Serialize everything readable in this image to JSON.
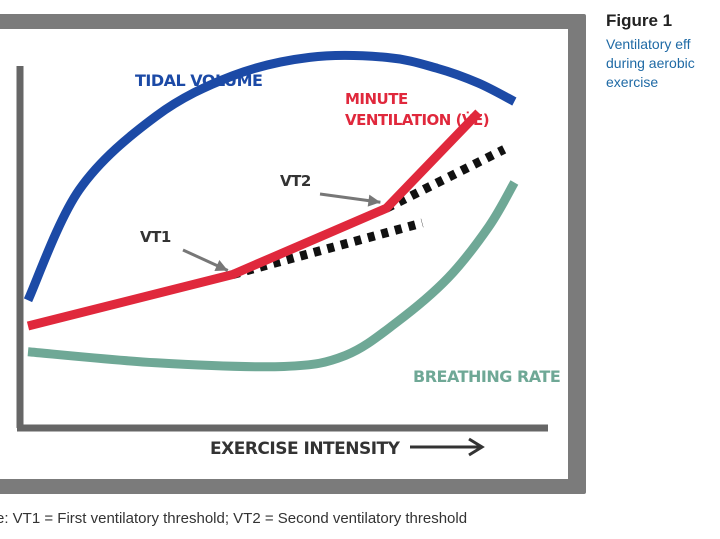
{
  "figure": {
    "title": "Figure 1",
    "subtitle_lines": [
      "Ventilatory eff",
      "during aerobic",
      "exercise"
    ]
  },
  "caption": "e: VT1 = First ventilatory threshold; VT2 = Second ventilatory threshold",
  "colors": {
    "tidal_volume": "#1c4aa6",
    "minute_ventilation": "#e0283c",
    "breathing_rate": "#6fa896",
    "threshold_dots": "#111111",
    "frame": "#7b7b7b",
    "axis": "#666666"
  },
  "chart_data": {
    "type": "line",
    "title": "",
    "xlabel": "EXERCISE INTENSITY",
    "ylabel": "",
    "xlim": [
      0,
      100
    ],
    "ylim": [
      0,
      100
    ],
    "grid": false,
    "series": [
      {
        "name": "TIDAL VOLUME",
        "color_key": "tidal_volume",
        "x": [
          0,
          10,
          25,
          40,
          55,
          70,
          80,
          88,
          95
        ],
        "y": [
          32,
          62,
          82,
          93,
          98,
          98,
          95,
          91,
          86
        ]
      },
      {
        "name": "MINUTE VENTILATION (V̇E)",
        "color_key": "minute_ventilation",
        "x": [
          0,
          40,
          70,
          88
        ],
        "y": [
          25,
          39,
          57,
          83
        ]
      },
      {
        "name": "BREATHING RATE",
        "color_key": "breathing_rate",
        "x": [
          0,
          25,
          50,
          62,
          72,
          82,
          90,
          95
        ],
        "y": [
          18,
          15,
          14,
          17,
          26,
          38,
          52,
          64
        ]
      }
    ],
    "dotted_extensions": [
      {
        "name": "VT1 extension",
        "x": [
          40,
          77
        ],
        "y": [
          39,
          53
        ]
      },
      {
        "name": "VT2 extension",
        "x": [
          70,
          93
        ],
        "y": [
          57,
          73
        ]
      }
    ],
    "annotations": [
      {
        "text": "VT1",
        "x": 40,
        "y": 39
      },
      {
        "text": "VT2",
        "x": 70,
        "y": 57
      }
    ]
  }
}
